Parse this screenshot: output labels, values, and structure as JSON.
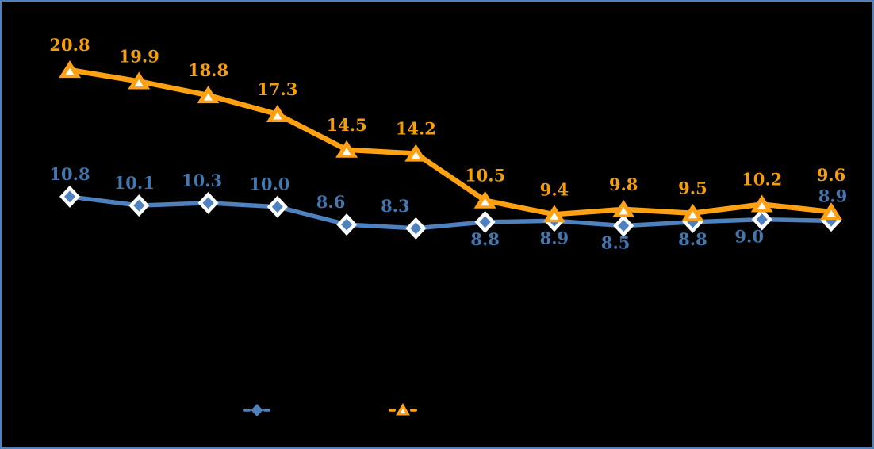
{
  "canvas": {
    "background_color": "#000000",
    "frame_border_color": "#4E81BD"
  },
  "chart_data": {
    "type": "line",
    "title": "",
    "xlabel": "",
    "ylabel": "",
    "point_count": 12,
    "axes_visible": false,
    "grid": false,
    "series": [
      {
        "name": "diamond-series",
        "marker": "diamond",
        "line_color": "#4E81BD",
        "marker_fill": "#4E81BD",
        "marker_outline": "#FFFFFF",
        "label_color": "#4576AD",
        "values": [
          10.8,
          10.1,
          10.3,
          10.0,
          8.6,
          8.3,
          8.8,
          8.9,
          8.5,
          8.8,
          9.0,
          8.9
        ]
      },
      {
        "name": "triangle-series",
        "marker": "triangle",
        "line_color": "#FFA113",
        "marker_fill": "#FFA113",
        "marker_outline": "#FFFFFF",
        "label_color": "#F59E0B",
        "values": [
          20.8,
          19.9,
          18.8,
          17.3,
          14.5,
          14.2,
          10.5,
          9.4,
          9.8,
          9.5,
          10.2,
          9.6
        ]
      }
    ],
    "legend": {
      "position": "bottom-center",
      "entries": [
        {
          "marker": "diamond",
          "color": "#4E81BD",
          "label": ""
        },
        {
          "marker": "triangle",
          "color": "#FFA113",
          "label": ""
        }
      ]
    }
  }
}
